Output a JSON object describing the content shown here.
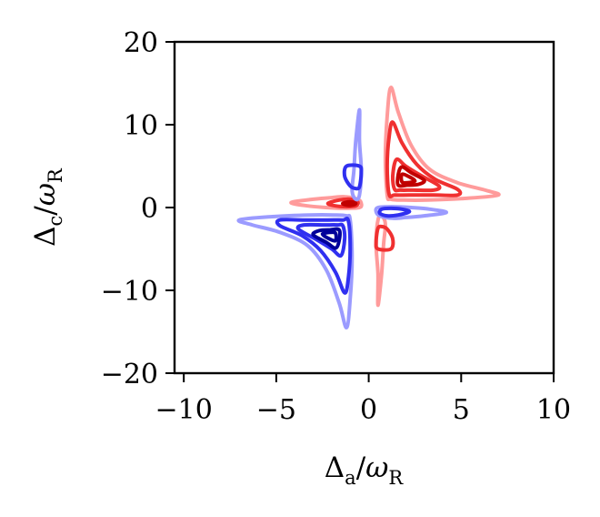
{
  "chart_data": {
    "type": "contour",
    "title": "",
    "xlabel": {
      "main": "Δ",
      "sub": "a",
      "denom": "ω",
      "denom_sub": "R"
    },
    "ylabel": {
      "main": "Δ",
      "sub": "c",
      "denom": "ω",
      "denom_sub": "R"
    },
    "xlim": [
      -10.5,
      10
    ],
    "ylim": [
      -20,
      20
    ],
    "xticks": [
      -10,
      -5,
      0,
      5,
      10
    ],
    "yticks": [
      -20,
      -10,
      0,
      10,
      20
    ],
    "xtick_labels": [
      "−10",
      "−5",
      "0",
      "5",
      "10"
    ],
    "ytick_labels": [
      "−20",
      "−10",
      "0",
      "10",
      "20"
    ],
    "grid": false,
    "legend": "none",
    "colors": {
      "positive_light": "#ff9b9b",
      "positive_mid": "#f03030",
      "positive_dark": "#c00000",
      "negative_light": "#9b9bff",
      "negative_mid": "#3030f0",
      "negative_dark": "#00009a"
    },
    "contours": [
      {
        "sign": "positive",
        "level": "light",
        "points": [
          [
            1.0,
            1.5
          ],
          [
            0.9,
            6
          ],
          [
            1.0,
            11
          ],
          [
            1.2,
            14.5
          ],
          [
            1.6,
            11.5
          ],
          [
            2.3,
            7.5
          ],
          [
            3.3,
            4.6
          ],
          [
            4.8,
            3.0
          ],
          [
            6.3,
            2.1
          ],
          [
            7.0,
            1.5
          ],
          [
            5.2,
            1.1
          ],
          [
            3.2,
            0.9
          ],
          [
            1.9,
            0.9
          ],
          [
            1.2,
            1.0
          ]
        ]
      },
      {
        "sign": "positive",
        "level": "mid",
        "points": [
          [
            1.1,
            1.6
          ],
          [
            1.0,
            5
          ],
          [
            1.1,
            8.5
          ],
          [
            1.3,
            10.3
          ],
          [
            1.8,
            7.8
          ],
          [
            2.6,
            5.2
          ],
          [
            3.6,
            3.4
          ],
          [
            4.8,
            2.2
          ],
          [
            4.8,
            1.5
          ],
          [
            3.5,
            1.5
          ],
          [
            2.2,
            1.5
          ],
          [
            1.4,
            1.5
          ]
        ]
      },
      {
        "sign": "positive",
        "level": "mid",
        "points": [
          [
            1.4,
            2.2
          ],
          [
            1.3,
            3.8
          ],
          [
            1.5,
            5.8
          ],
          [
            2.0,
            5.0
          ],
          [
            2.8,
            3.9
          ],
          [
            3.8,
            2.6
          ],
          [
            3.5,
            2.1
          ],
          [
            2.4,
            2.1
          ],
          [
            1.7,
            2.1
          ]
        ]
      },
      {
        "sign": "positive",
        "level": "dark",
        "points": [
          [
            1.6,
            2.7
          ],
          [
            1.6,
            4.0
          ],
          [
            1.8,
            4.9
          ],
          [
            2.3,
            4.2
          ],
          [
            3.0,
            3.3
          ],
          [
            2.7,
            2.8
          ],
          [
            2.1,
            2.7
          ]
        ]
      },
      {
        "sign": "positive",
        "level": "dark",
        "points": [
          [
            1.8,
            3.1
          ],
          [
            1.8,
            4.0
          ],
          [
            2.2,
            3.7
          ],
          [
            2.5,
            3.2
          ],
          [
            2.1,
            3.0
          ]
        ]
      },
      {
        "sign": "positive",
        "level": "light",
        "points": [
          [
            -4.2,
            0.6
          ],
          [
            -3.0,
            1.0
          ],
          [
            -2.0,
            1.2
          ],
          [
            -1.3,
            1.3
          ],
          [
            -0.6,
            1.0
          ],
          [
            -0.4,
            0.5
          ],
          [
            -0.5,
            0.0
          ],
          [
            -1.3,
            -0.1
          ],
          [
            -2.3,
            0.0
          ],
          [
            -3.3,
            0.2
          ]
        ]
      },
      {
        "sign": "positive",
        "level": "mid",
        "points": [
          [
            -2.2,
            0.5
          ],
          [
            -1.6,
            0.9
          ],
          [
            -1.0,
            1.0
          ],
          [
            -0.6,
            0.7
          ],
          [
            -0.7,
            0.2
          ],
          [
            -1.2,
            0.1
          ],
          [
            -1.8,
            0.2
          ]
        ]
      },
      {
        "sign": "positive",
        "level": "dark",
        "points": [
          [
            -1.4,
            0.5
          ],
          [
            -1.0,
            0.7
          ],
          [
            -0.7,
            0.5
          ],
          [
            -0.9,
            0.3
          ],
          [
            -1.2,
            0.3
          ]
        ]
      },
      {
        "sign": "positive",
        "level": "light",
        "points": [
          [
            0.5,
            -1.5
          ],
          [
            0.4,
            -4.5
          ],
          [
            0.5,
            -8.0
          ],
          [
            0.5,
            -11.8
          ],
          [
            0.7,
            -8.0
          ],
          [
            0.8,
            -4.5
          ],
          [
            0.9,
            -2.0
          ],
          [
            0.7,
            -1.0
          ]
        ]
      },
      {
        "sign": "positive",
        "level": "mid",
        "points": [
          [
            0.5,
            -2.5
          ],
          [
            0.4,
            -4.2
          ],
          [
            0.5,
            -5.0
          ],
          [
            1.2,
            -5.0
          ],
          [
            1.3,
            -3.8
          ],
          [
            1.0,
            -2.6
          ],
          [
            0.7,
            -2.3
          ]
        ]
      },
      {
        "sign": "negative",
        "level": "light",
        "points": [
          [
            -1.0,
            -1.5
          ],
          [
            -0.9,
            -6
          ],
          [
            -1.0,
            -11
          ],
          [
            -1.2,
            -14.5
          ],
          [
            -1.6,
            -11.5
          ],
          [
            -2.3,
            -7.5
          ],
          [
            -3.3,
            -4.6
          ],
          [
            -4.8,
            -3.0
          ],
          [
            -6.3,
            -2.1
          ],
          [
            -7.0,
            -1.5
          ],
          [
            -5.2,
            -1.1
          ],
          [
            -3.2,
            -0.9
          ],
          [
            -1.9,
            -0.9
          ],
          [
            -1.2,
            -1.0
          ]
        ]
      },
      {
        "sign": "negative",
        "level": "mid",
        "points": [
          [
            -1.1,
            -1.6
          ],
          [
            -1.0,
            -5
          ],
          [
            -1.1,
            -8.5
          ],
          [
            -1.3,
            -10.3
          ],
          [
            -1.8,
            -7.8
          ],
          [
            -2.6,
            -5.2
          ],
          [
            -3.6,
            -3.4
          ],
          [
            -4.8,
            -2.2
          ],
          [
            -4.8,
            -1.5
          ],
          [
            -3.5,
            -1.5
          ],
          [
            -2.2,
            -1.5
          ],
          [
            -1.4,
            -1.5
          ]
        ]
      },
      {
        "sign": "negative",
        "level": "mid",
        "points": [
          [
            -1.4,
            -2.2
          ],
          [
            -1.3,
            -3.8
          ],
          [
            -1.5,
            -5.8
          ],
          [
            -2.0,
            -5.0
          ],
          [
            -2.8,
            -3.9
          ],
          [
            -3.8,
            -2.6
          ],
          [
            -3.5,
            -2.1
          ],
          [
            -2.4,
            -2.1
          ],
          [
            -1.7,
            -2.1
          ]
        ]
      },
      {
        "sign": "negative",
        "level": "dark",
        "points": [
          [
            -1.6,
            -2.7
          ],
          [
            -1.6,
            -4.0
          ],
          [
            -1.8,
            -4.9
          ],
          [
            -2.3,
            -4.2
          ],
          [
            -3.0,
            -3.3
          ],
          [
            -2.7,
            -2.8
          ],
          [
            -2.1,
            -2.7
          ]
        ]
      },
      {
        "sign": "negative",
        "level": "dark",
        "points": [
          [
            -1.8,
            -3.1
          ],
          [
            -1.8,
            -4.0
          ],
          [
            -2.2,
            -3.7
          ],
          [
            -2.5,
            -3.2
          ],
          [
            -2.1,
            -3.0
          ]
        ]
      },
      {
        "sign": "negative",
        "level": "light",
        "points": [
          [
            4.2,
            -0.6
          ],
          [
            3.0,
            -1.0
          ],
          [
            2.0,
            -1.2
          ],
          [
            1.3,
            -1.3
          ],
          [
            0.6,
            -1.0
          ],
          [
            0.4,
            -0.5
          ],
          [
            0.5,
            0.0
          ],
          [
            1.3,
            0.1
          ],
          [
            2.3,
            0.0
          ],
          [
            3.3,
            -0.2
          ]
        ]
      },
      {
        "sign": "negative",
        "level": "mid",
        "points": [
          [
            2.2,
            -0.5
          ],
          [
            1.6,
            -0.9
          ],
          [
            1.0,
            -1.0
          ],
          [
            0.6,
            -0.7
          ],
          [
            0.7,
            -0.2
          ],
          [
            1.2,
            -0.1
          ],
          [
            1.8,
            -0.2
          ]
        ]
      },
      {
        "sign": "negative",
        "level": "light",
        "points": [
          [
            -0.5,
            1.5
          ],
          [
            -0.4,
            4.5
          ],
          [
            -0.5,
            8.0
          ],
          [
            -0.5,
            11.8
          ],
          [
            -0.7,
            8.0
          ],
          [
            -0.8,
            4.5
          ],
          [
            -0.9,
            2.0
          ],
          [
            -0.7,
            1.0
          ]
        ]
      },
      {
        "sign": "negative",
        "level": "mid",
        "points": [
          [
            -0.5,
            2.5
          ],
          [
            -0.4,
            4.2
          ],
          [
            -0.5,
            5.0
          ],
          [
            -1.2,
            5.0
          ],
          [
            -1.3,
            3.8
          ],
          [
            -1.0,
            2.6
          ],
          [
            -0.7,
            2.3
          ]
        ]
      }
    ]
  }
}
